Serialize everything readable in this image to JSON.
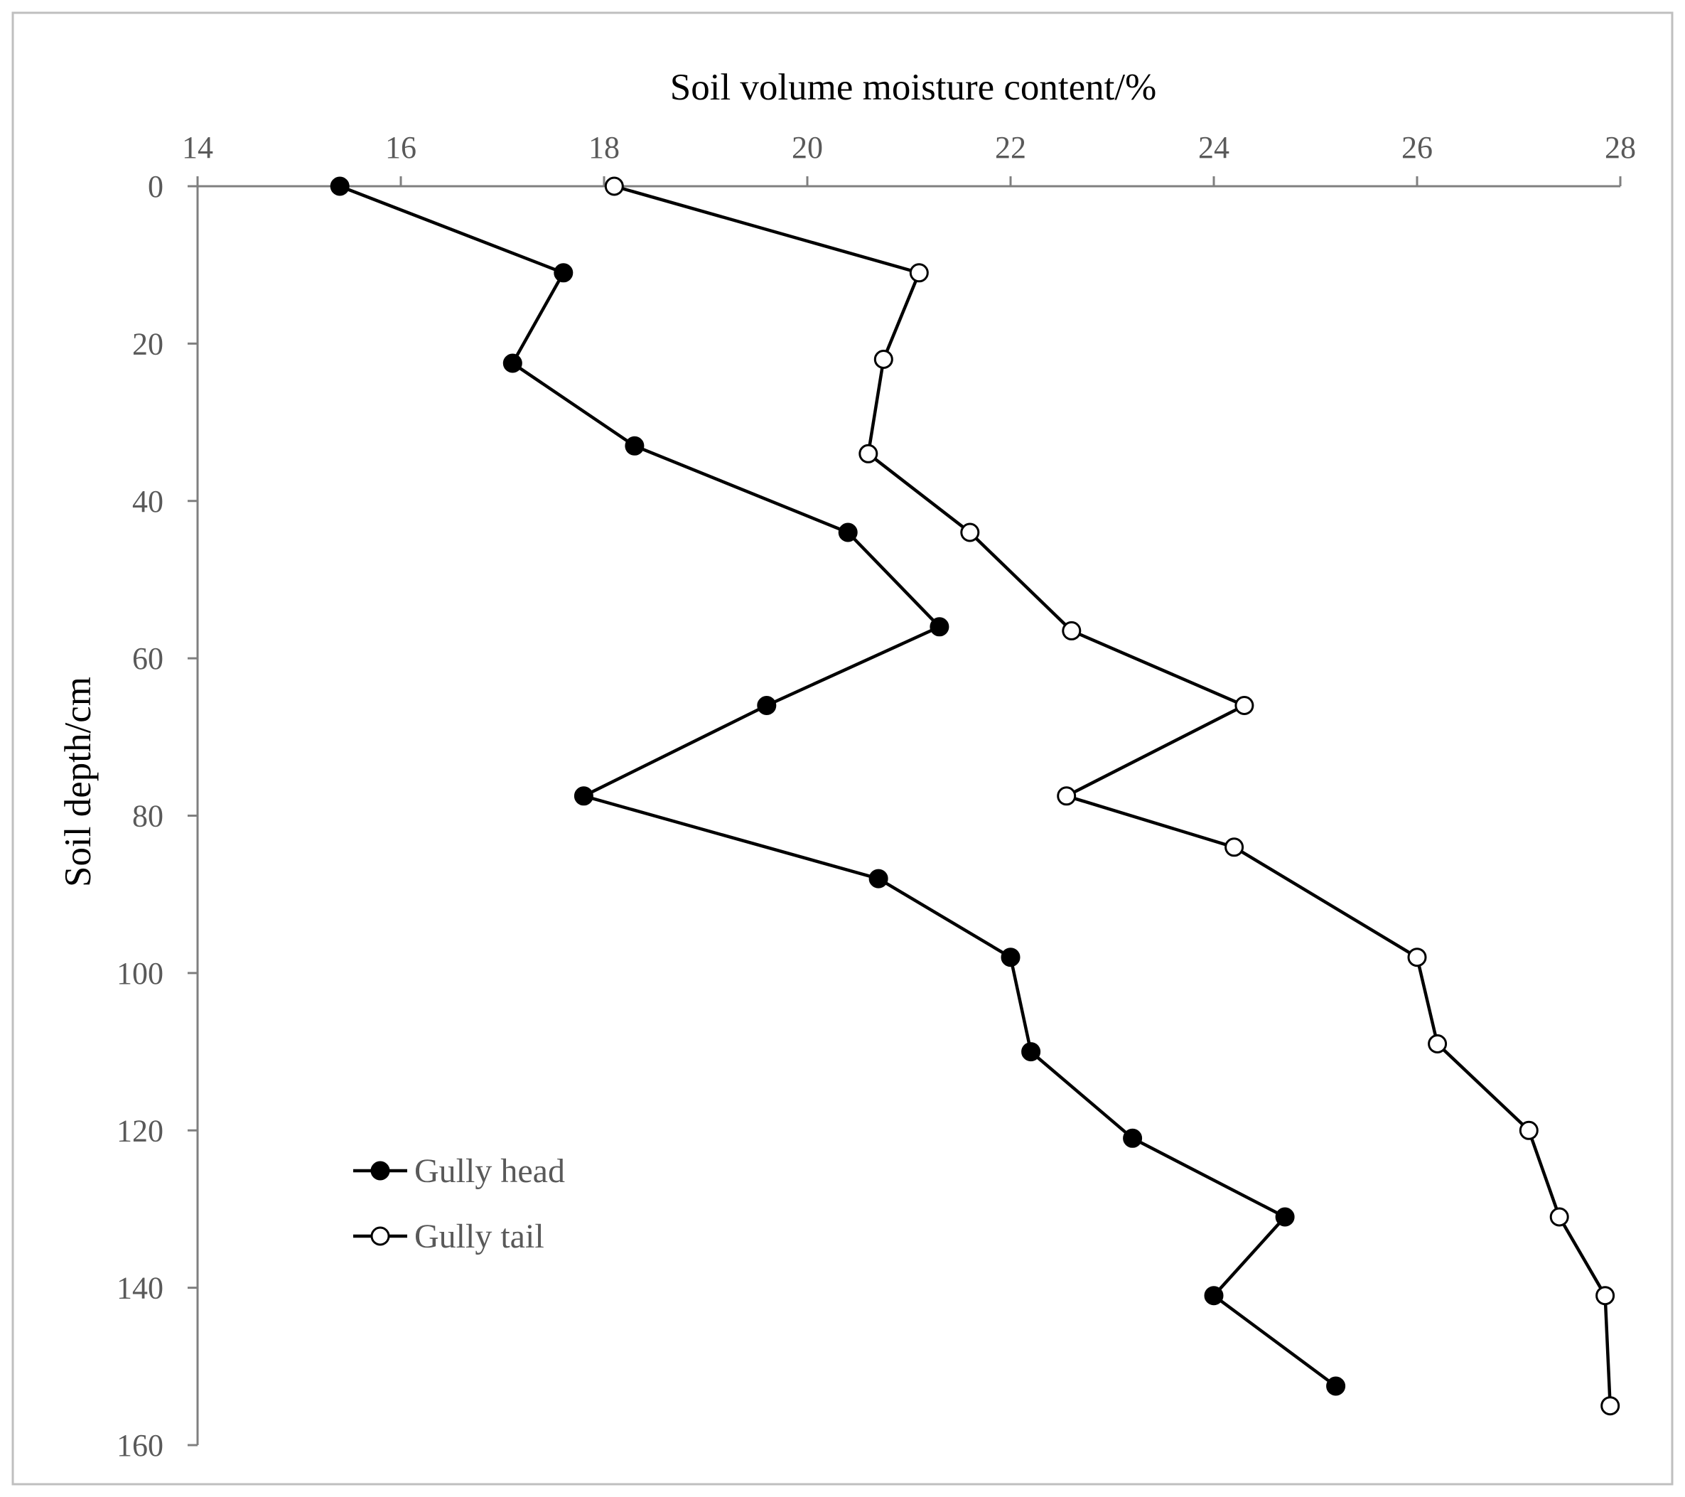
{
  "chart_data": {
    "type": "line",
    "title": "",
    "xlabel": "Soil volume moisture content/%",
    "ylabel": "Soil depth/cm",
    "x_axis_position": "top",
    "y_axis_inverted": true,
    "xlim": [
      14,
      28
    ],
    "ylim": [
      0,
      160
    ],
    "xticks": [
      14,
      16,
      18,
      20,
      22,
      24,
      26,
      28
    ],
    "yticks": [
      0,
      20,
      40,
      60,
      80,
      100,
      120,
      140,
      160
    ],
    "grid": false,
    "legend_position": "bottom-left",
    "series": [
      {
        "name": "Gully head",
        "marker": "filled-circle",
        "color": "#000000",
        "points": [
          {
            "x": 15.4,
            "y": 0
          },
          {
            "x": 17.6,
            "y": 11
          },
          {
            "x": 17.1,
            "y": 22.5
          },
          {
            "x": 18.3,
            "y": 33
          },
          {
            "x": 20.4,
            "y": 44
          },
          {
            "x": 21.3,
            "y": 56
          },
          {
            "x": 19.6,
            "y": 66
          },
          {
            "x": 17.8,
            "y": 77.5
          },
          {
            "x": 20.7,
            "y": 88
          },
          {
            "x": 22.0,
            "y": 98
          },
          {
            "x": 22.2,
            "y": 110
          },
          {
            "x": 23.2,
            "y": 121
          },
          {
            "x": 24.7,
            "y": 131
          },
          {
            "x": 24.0,
            "y": 141
          },
          {
            "x": 25.2,
            "y": 152.5
          }
        ]
      },
      {
        "name": "Gully tail",
        "marker": "open-circle",
        "color": "#000000",
        "points": [
          {
            "x": 18.1,
            "y": 0
          },
          {
            "x": 21.1,
            "y": 11
          },
          {
            "x": 20.75,
            "y": 22
          },
          {
            "x": 20.6,
            "y": 34
          },
          {
            "x": 21.6,
            "y": 44
          },
          {
            "x": 22.6,
            "y": 56.5
          },
          {
            "x": 24.3,
            "y": 66
          },
          {
            "x": 22.55,
            "y": 77.5
          },
          {
            "x": 24.2,
            "y": 84
          },
          {
            "x": 26.0,
            "y": 98
          },
          {
            "x": 26.2,
            "y": 109
          },
          {
            "x": 27.1,
            "y": 120
          },
          {
            "x": 27.4,
            "y": 131
          },
          {
            "x": 27.85,
            "y": 141
          },
          {
            "x": 27.9,
            "y": 155
          }
        ]
      }
    ]
  }
}
